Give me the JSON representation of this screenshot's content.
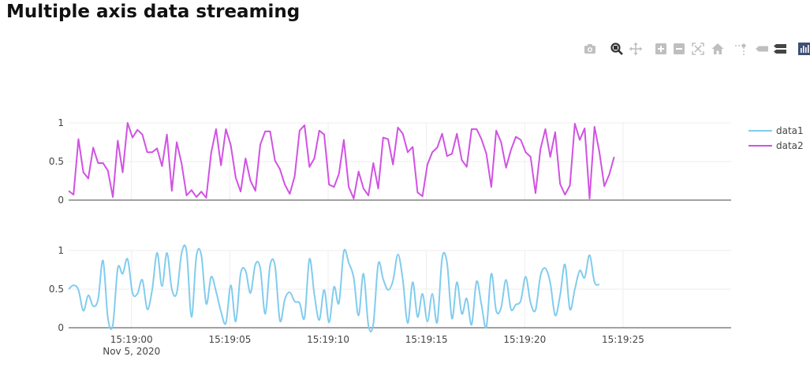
{
  "page": {
    "title": "Multiple axis data streaming"
  },
  "toolbar": {
    "buttons": [
      {
        "name": "camera-icon"
      },
      {
        "name": "zoom-icon"
      },
      {
        "name": "pan-icon"
      },
      {
        "name": "zoom-in-icon"
      },
      {
        "name": "zoom-out-icon"
      },
      {
        "name": "autoscale-icon"
      },
      {
        "name": "home-icon"
      },
      {
        "name": "spike-lines-icon"
      },
      {
        "name": "hover-closest-icon"
      },
      {
        "name": "hover-compare-icon"
      },
      {
        "name": "plotly-logo-icon"
      }
    ]
  },
  "chart_data": {
    "type": "line",
    "title": "Multiple axis data streaming",
    "x_start": "15:18:56.8",
    "x_step_seconds": 0.25,
    "x_range": [
      "15:18:56.8",
      "15:19:30.5"
    ],
    "x_tick_labels": [
      "15:19:00",
      "15:19:05",
      "15:19:10",
      "15:19:15",
      "15:19:20",
      "15:19:25"
    ],
    "x_tick_seconds": [
      0,
      5,
      10,
      15,
      20,
      25
    ],
    "x_sublabel": "Nov 5, 2020",
    "legend_position": "top-right",
    "grid": true,
    "subplots": [
      {
        "name": "top",
        "y_range": [
          0,
          1
        ],
        "y_tick_labels": [
          "0",
          "0.5",
          "1"
        ],
        "y_tick_values": [
          0,
          0.5,
          1
        ],
        "series": [
          {
            "name": "data2",
            "color": "#d152e3",
            "shape": "linear",
            "values": [
              0.12,
              0.07,
              0.79,
              0.36,
              0.28,
              0.68,
              0.48,
              0.48,
              0.38,
              0.04,
              0.77,
              0.36,
              1.0,
              0.81,
              0.91,
              0.85,
              0.62,
              0.62,
              0.67,
              0.44,
              0.85,
              0.12,
              0.75,
              0.47,
              0.06,
              0.13,
              0.04,
              0.11,
              0.03,
              0.61,
              0.92,
              0.45,
              0.92,
              0.71,
              0.29,
              0.11,
              0.54,
              0.25,
              0.12,
              0.72,
              0.89,
              0.89,
              0.51,
              0.4,
              0.2,
              0.08,
              0.31,
              0.9,
              0.97,
              0.43,
              0.54,
              0.9,
              0.85,
              0.2,
              0.17,
              0.34,
              0.78,
              0.17,
              0.02,
              0.37,
              0.15,
              0.06,
              0.48,
              0.15,
              0.81,
              0.79,
              0.46,
              0.94,
              0.86,
              0.62,
              0.69,
              0.1,
              0.05,
              0.46,
              0.62,
              0.68,
              0.86,
              0.57,
              0.6,
              0.86,
              0.52,
              0.43,
              0.92,
              0.92,
              0.79,
              0.6,
              0.17,
              0.9,
              0.75,
              0.42,
              0.65,
              0.82,
              0.78,
              0.62,
              0.56,
              0.09,
              0.66,
              0.92,
              0.56,
              0.88,
              0.21,
              0.07,
              0.19,
              0.99,
              0.78,
              0.93,
              0.02,
              0.95,
              0.62,
              0.18,
              0.33,
              0.56
            ]
          }
        ]
      },
      {
        "name": "bottom",
        "y_range": [
          0,
          1
        ],
        "y_tick_labels": [
          "0",
          "0.5",
          "1"
        ],
        "y_tick_values": [
          0,
          0.5,
          1
        ],
        "series": [
          {
            "name": "data1",
            "color": "#81ccee",
            "shape": "spline",
            "values": [
              0.5,
              0.55,
              0.49,
              0.22,
              0.42,
              0.28,
              0.37,
              0.87,
              0.12,
              0.04,
              0.77,
              0.7,
              0.89,
              0.45,
              0.44,
              0.62,
              0.24,
              0.49,
              0.97,
              0.54,
              0.97,
              0.5,
              0.45,
              0.97,
              0.99,
              0.14,
              0.93,
              0.94,
              0.31,
              0.66,
              0.47,
              0.21,
              0.06,
              0.55,
              0.08,
              0.7,
              0.74,
              0.45,
              0.82,
              0.77,
              0.18,
              0.81,
              0.8,
              0.09,
              0.37,
              0.46,
              0.34,
              0.32,
              0.13,
              0.89,
              0.43,
              0.1,
              0.49,
              0.07,
              0.53,
              0.32,
              0.99,
              0.84,
              0.65,
              0.16,
              0.7,
              0.03,
              0.05,
              0.83,
              0.63,
              0.49,
              0.61,
              0.95,
              0.62,
              0.06,
              0.59,
              0.14,
              0.44,
              0.08,
              0.44,
              0.07,
              0.9,
              0.84,
              0.12,
              0.59,
              0.18,
              0.38,
              0.04,
              0.6,
              0.3,
              0.01,
              0.7,
              0.22,
              0.26,
              0.62,
              0.24,
              0.3,
              0.35,
              0.66,
              0.32,
              0.23,
              0.67,
              0.77,
              0.58,
              0.16,
              0.42,
              0.82,
              0.24,
              0.5,
              0.74,
              0.65,
              0.94,
              0.59,
              0.56
            ]
          }
        ]
      }
    ]
  }
}
